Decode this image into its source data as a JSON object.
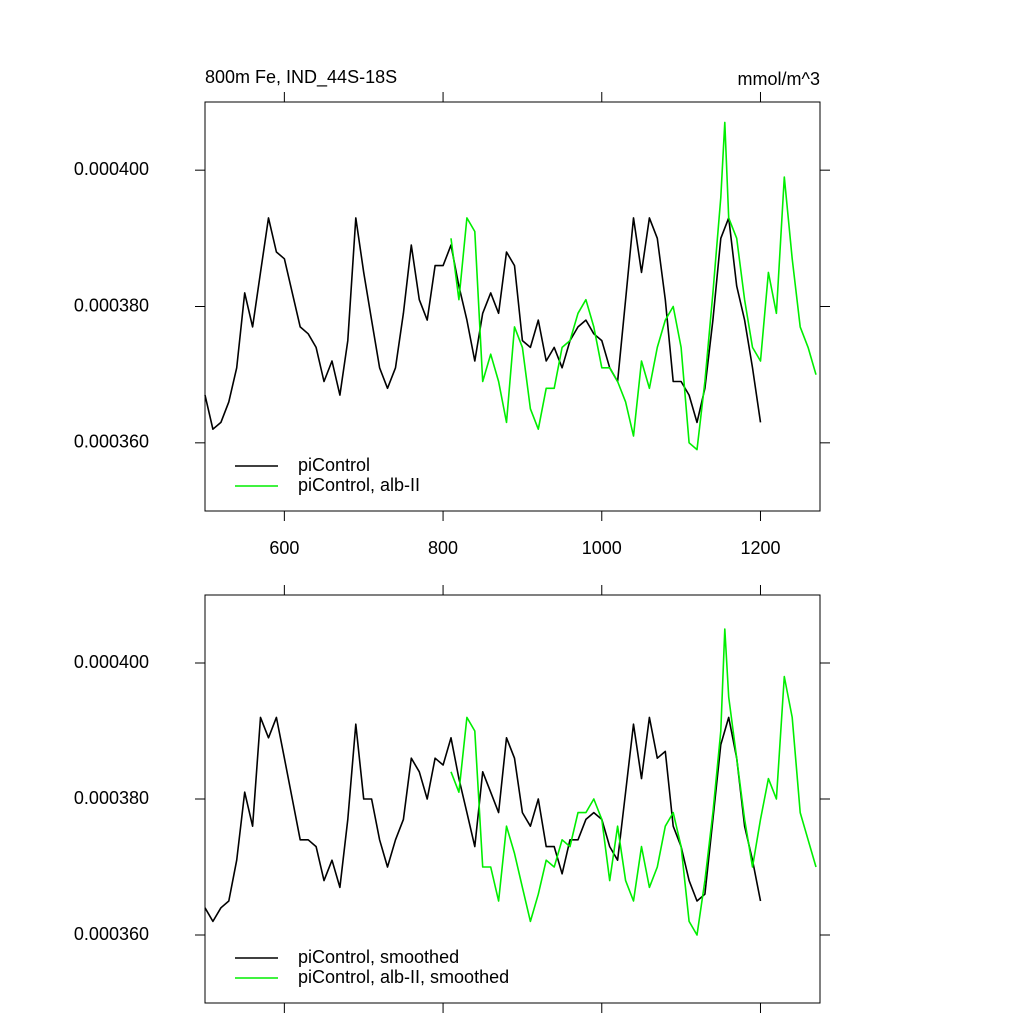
{
  "chart_data": [
    {
      "type": "line",
      "title": "800m Fe, IND_44S-18S",
      "units": "mmol/m^3",
      "xlim": [
        500,
        1275
      ],
      "ylim": [
        0.00035,
        0.00041
      ],
      "xticks": [
        600,
        800,
        1000,
        1200
      ],
      "yticks": [
        {
          "value": 0.00036,
          "label": "0.000360"
        },
        {
          "value": 0.00038,
          "label": "0.000380"
        },
        {
          "value": 0.0004,
          "label": "0.000400"
        }
      ],
      "xtick_labels": true,
      "legend": "lower left",
      "series": [
        {
          "name": "piControl",
          "color": "#000000",
          "x": [
            500,
            510,
            520,
            530,
            540,
            550,
            560,
            570,
            580,
            590,
            600,
            610,
            620,
            630,
            640,
            650,
            660,
            670,
            680,
            690,
            700,
            710,
            720,
            730,
            740,
            750,
            760,
            770,
            780,
            790,
            800,
            810,
            820,
            830,
            840,
            850,
            860,
            870,
            880,
            890,
            900,
            910,
            920,
            930,
            940,
            950,
            960,
            970,
            980,
            990,
            1000,
            1010,
            1020,
            1030,
            1040,
            1050,
            1060,
            1070,
            1080,
            1090,
            1100,
            1110,
            1120,
            1130,
            1140,
            1150,
            1160,
            1170,
            1180,
            1190,
            1200
          ],
          "values": [
            0.000367,
            0.000362,
            0.000363,
            0.000366,
            0.000371,
            0.000382,
            0.000377,
            0.000385,
            0.000393,
            0.000388,
            0.000387,
            0.000382,
            0.000377,
            0.000376,
            0.000374,
            0.000369,
            0.000372,
            0.000367,
            0.000375,
            0.000393,
            0.000385,
            0.000378,
            0.000371,
            0.000368,
            0.000371,
            0.000379,
            0.000389,
            0.000381,
            0.000378,
            0.000386,
            0.000386,
            0.000389,
            0.000383,
            0.000378,
            0.000372,
            0.000379,
            0.000382,
            0.000379,
            0.000388,
            0.000386,
            0.000375,
            0.000374,
            0.000378,
            0.000372,
            0.000374,
            0.000371,
            0.000375,
            0.000377,
            0.000378,
            0.000376,
            0.000375,
            0.000371,
            0.000369,
            0.000381,
            0.000393,
            0.000385,
            0.000393,
            0.00039,
            0.000381,
            0.000369,
            0.000369,
            0.000367,
            0.000363,
            0.000368,
            0.000378,
            0.00039,
            0.000393,
            0.000383,
            0.000378,
            0.000371,
            0.000363
          ]
        },
        {
          "name": "piControl, alb-II",
          "color": "#00ee00",
          "x": [
            810,
            820,
            830,
            840,
            850,
            860,
            870,
            880,
            890,
            900,
            910,
            920,
            930,
            940,
            950,
            960,
            970,
            980,
            990,
            1000,
            1010,
            1020,
            1030,
            1040,
            1050,
            1060,
            1070,
            1080,
            1090,
            1100,
            1110,
            1120,
            1130,
            1140,
            1150,
            1155,
            1160,
            1170,
            1180,
            1190,
            1200,
            1210,
            1220,
            1230,
            1240,
            1250,
            1260,
            1270
          ],
          "values": [
            0.00039,
            0.000381,
            0.000393,
            0.000391,
            0.000369,
            0.000373,
            0.000369,
            0.000363,
            0.000377,
            0.000374,
            0.000365,
            0.000362,
            0.000368,
            0.000368,
            0.000374,
            0.000375,
            0.000379,
            0.000381,
            0.000377,
            0.000371,
            0.000371,
            0.000369,
            0.000366,
            0.000361,
            0.000372,
            0.000368,
            0.000374,
            0.000378,
            0.00038,
            0.000374,
            0.00036,
            0.000359,
            0.000369,
            0.000382,
            0.000396,
            0.000407,
            0.000393,
            0.00039,
            0.000381,
            0.000374,
            0.000372,
            0.000385,
            0.000379,
            0.000399,
            0.000387,
            0.000377,
            0.000374,
            0.00037
          ]
        }
      ]
    },
    {
      "type": "line",
      "xlim": [
        500,
        1275
      ],
      "ylim": [
        0.00035,
        0.00041
      ],
      "xticks": [
        600,
        800,
        1000,
        1200
      ],
      "yticks": [
        {
          "value": 0.00036,
          "label": "0.000360"
        },
        {
          "value": 0.00038,
          "label": "0.000380"
        },
        {
          "value": 0.0004,
          "label": "0.000400"
        }
      ],
      "xtick_labels": false,
      "legend": "lower left",
      "series": [
        {
          "name": "piControl, smoothed",
          "color": "#000000",
          "x": [
            500,
            510,
            520,
            530,
            540,
            550,
            560,
            570,
            580,
            590,
            600,
            610,
            620,
            630,
            640,
            650,
            660,
            670,
            680,
            690,
            700,
            710,
            720,
            730,
            740,
            750,
            760,
            770,
            780,
            790,
            800,
            810,
            820,
            830,
            840,
            850,
            860,
            870,
            880,
            890,
            900,
            910,
            920,
            930,
            940,
            950,
            960,
            970,
            980,
            990,
            1000,
            1010,
            1020,
            1030,
            1040,
            1050,
            1060,
            1070,
            1080,
            1090,
            1100,
            1110,
            1120,
            1130,
            1140,
            1150,
            1160,
            1170,
            1180,
            1190,
            1200
          ],
          "values": [
            0.000364,
            0.000362,
            0.000364,
            0.000365,
            0.000371,
            0.000381,
            0.000376,
            0.000392,
            0.000389,
            0.000392,
            0.000386,
            0.00038,
            0.000374,
            0.000374,
            0.000373,
            0.000368,
            0.000371,
            0.000367,
            0.000377,
            0.000391,
            0.00038,
            0.00038,
            0.000374,
            0.00037,
            0.000374,
            0.000377,
            0.000386,
            0.000384,
            0.00038,
            0.000386,
            0.000385,
            0.000389,
            0.000383,
            0.000378,
            0.000373,
            0.000384,
            0.000381,
            0.000378,
            0.000389,
            0.000386,
            0.000378,
            0.000376,
            0.00038,
            0.000373,
            0.000373,
            0.000369,
            0.000374,
            0.000374,
            0.000377,
            0.000378,
            0.000377,
            0.000373,
            0.000371,
            0.000381,
            0.000391,
            0.000383,
            0.000392,
            0.000386,
            0.000387,
            0.000376,
            0.000373,
            0.000368,
            0.000365,
            0.000366,
            0.000377,
            0.000388,
            0.000392,
            0.000386,
            0.000376,
            0.000371,
            0.000365
          ]
        },
        {
          "name": "piControl, alb-II, smoothed",
          "color": "#00ee00",
          "x": [
            810,
            820,
            830,
            840,
            850,
            860,
            870,
            880,
            890,
            900,
            910,
            920,
            930,
            940,
            950,
            960,
            970,
            980,
            990,
            1000,
            1010,
            1020,
            1030,
            1040,
            1050,
            1060,
            1070,
            1080,
            1090,
            1100,
            1110,
            1120,
            1130,
            1140,
            1150,
            1155,
            1160,
            1170,
            1180,
            1190,
            1200,
            1210,
            1220,
            1230,
            1240,
            1250,
            1260,
            1270
          ],
          "values": [
            0.000384,
            0.000381,
            0.000392,
            0.00039,
            0.00037,
            0.00037,
            0.000365,
            0.000376,
            0.000372,
            0.000367,
            0.000362,
            0.000366,
            0.000371,
            0.00037,
            0.000374,
            0.000373,
            0.000378,
            0.000378,
            0.00038,
            0.000377,
            0.000368,
            0.000376,
            0.000368,
            0.000365,
            0.000373,
            0.000367,
            0.00037,
            0.000376,
            0.000378,
            0.000373,
            0.000362,
            0.00036,
            0.000368,
            0.000378,
            0.00039,
            0.000405,
            0.000395,
            0.000386,
            0.000377,
            0.00037,
            0.000377,
            0.000383,
            0.00038,
            0.000398,
            0.000392,
            0.000378,
            0.000374,
            0.00037
          ]
        }
      ]
    }
  ]
}
